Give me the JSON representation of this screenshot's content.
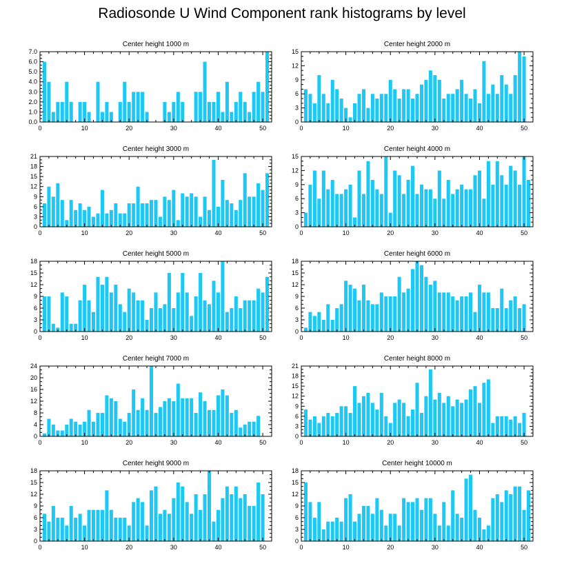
{
  "figure_title": "Radiosonde U Wind Component rank histograms by level",
  "colors": {
    "bar": "#1ec8f5",
    "axis": "#000000"
  },
  "chart_data": [
    {
      "type": "bar",
      "title": "Center height 1000 m",
      "x": [
        1,
        2,
        3,
        4,
        5,
        6,
        7,
        8,
        9,
        10,
        11,
        12,
        13,
        14,
        15,
        16,
        17,
        18,
        19,
        20,
        21,
        22,
        23,
        24,
        25,
        26,
        27,
        28,
        29,
        30,
        31,
        32,
        33,
        34,
        35,
        36,
        37,
        38,
        39,
        40,
        41,
        42,
        43,
        44,
        45,
        46,
        47,
        48,
        49,
        50,
        51
      ],
      "values": [
        6.0,
        4.0,
        1.0,
        2.0,
        2.0,
        4.0,
        2.0,
        0,
        2.0,
        2.0,
        1.0,
        0,
        4.0,
        1.0,
        2.0,
        1.0,
        0,
        2.0,
        4.0,
        2.0,
        3.0,
        3.0,
        3.0,
        1.0,
        0,
        0,
        0,
        2.0,
        1.0,
        2.0,
        3.0,
        2.0,
        0,
        0,
        3.0,
        3.0,
        6.0,
        2.0,
        2.0,
        3.0,
        1.0,
        4.0,
        1.0,
        2.0,
        3.0,
        2.0,
        1.0,
        3.0,
        4.0,
        3.0,
        7.0
      ],
      "xlim": [
        0,
        52
      ],
      "ylim": [
        0,
        7
      ],
      "yticks": [
        "0.0",
        "1.0",
        "2.0",
        "3.0",
        "4.0",
        "5.0",
        "6.0",
        "7.0"
      ],
      "xticks": [
        "0",
        "10",
        "20",
        "30",
        "40",
        "50"
      ],
      "yaxis_side": "left"
    },
    {
      "type": "bar",
      "title": "Center height 2000 m",
      "x": [
        1,
        2,
        3,
        4,
        5,
        6,
        7,
        8,
        9,
        10,
        11,
        12,
        13,
        14,
        15,
        16,
        17,
        18,
        19,
        20,
        21,
        22,
        23,
        24,
        25,
        26,
        27,
        28,
        29,
        30,
        31,
        32,
        33,
        34,
        35,
        36,
        37,
        38,
        39,
        40,
        41,
        42,
        43,
        44,
        45,
        46,
        47,
        48,
        49,
        50,
        51
      ],
      "values": [
        7,
        6,
        4,
        10,
        6,
        4,
        9,
        7,
        5,
        3,
        1,
        4,
        6,
        7,
        3,
        6,
        5,
        6,
        6,
        9,
        7,
        5,
        7,
        7,
        5,
        6,
        8,
        9,
        11,
        10,
        9,
        5,
        6,
        6,
        7,
        9,
        6,
        5,
        7,
        4,
        13,
        6,
        8,
        6,
        10,
        8,
        6,
        10,
        15,
        14,
        0
      ],
      "xlim": [
        0,
        52
      ],
      "ylim": [
        0,
        15
      ],
      "yticks": [
        "0",
        "3",
        "6",
        "9",
        "12",
        "15"
      ],
      "xticks": [
        "0",
        "10",
        "20",
        "30",
        "40",
        "50"
      ],
      "yaxis_side": "left"
    },
    {
      "type": "bar",
      "title": "Center height 3000 m",
      "x": [
        1,
        2,
        3,
        4,
        5,
        6,
        7,
        8,
        9,
        10,
        11,
        12,
        13,
        14,
        15,
        16,
        17,
        18,
        19,
        20,
        21,
        22,
        23,
        24,
        25,
        26,
        27,
        28,
        29,
        30,
        31,
        32,
        33,
        34,
        35,
        36,
        37,
        38,
        39,
        40,
        41,
        42,
        43,
        44,
        45,
        46,
        47,
        48,
        49,
        50,
        51
      ],
      "values": [
        7,
        12,
        9,
        13,
        8,
        2,
        8,
        5,
        7,
        5,
        6,
        3,
        4,
        11,
        4,
        5,
        7,
        4,
        4,
        7,
        7,
        12,
        7,
        7,
        8,
        8,
        3,
        9,
        8,
        11,
        2,
        10,
        9,
        10,
        9,
        3,
        9,
        5,
        20,
        6,
        14,
        8,
        7,
        5,
        8,
        16,
        9,
        9,
        13,
        11,
        16
      ],
      "xlim": [
        0,
        52
      ],
      "ylim": [
        0,
        21
      ],
      "yticks": [
        "0",
        "3",
        "6",
        "9",
        "12",
        "15",
        "18",
        "21"
      ],
      "xticks": [
        "0",
        "10",
        "20",
        "30",
        "40",
        "50"
      ],
      "yaxis_side": "left"
    },
    {
      "type": "bar",
      "title": "Center height 4000 m",
      "x": [
        1,
        2,
        3,
        4,
        5,
        6,
        7,
        8,
        9,
        10,
        11,
        12,
        13,
        14,
        15,
        16,
        17,
        18,
        19,
        20,
        21,
        22,
        23,
        24,
        25,
        26,
        27,
        28,
        29,
        30,
        31,
        32,
        33,
        34,
        35,
        36,
        37,
        38,
        39,
        40,
        41,
        42,
        43,
        44,
        45,
        46,
        47,
        48,
        49,
        50,
        51
      ],
      "values": [
        3,
        9,
        12,
        6,
        12,
        8,
        10,
        7,
        7,
        8,
        9,
        2,
        12,
        7,
        14,
        10,
        8,
        7,
        15,
        3,
        12,
        11,
        7,
        10,
        13,
        7,
        9,
        8,
        8,
        6,
        12,
        6,
        10,
        7,
        8,
        9,
        8,
        8,
        11,
        12,
        6,
        14,
        9,
        14,
        11,
        9,
        13,
        12,
        9,
        15,
        10
      ],
      "xlim": [
        0,
        52
      ],
      "ylim": [
        0,
        15
      ],
      "yticks": [
        "0",
        "3",
        "6",
        "9",
        "12",
        "15"
      ],
      "xticks": [
        "0",
        "10",
        "20",
        "30",
        "40",
        "50"
      ],
      "yaxis_side": "left"
    },
    {
      "type": "bar",
      "title": "Center height 5000 m",
      "x": [
        1,
        2,
        3,
        4,
        5,
        6,
        7,
        8,
        9,
        10,
        11,
        12,
        13,
        14,
        15,
        16,
        17,
        18,
        19,
        20,
        21,
        22,
        23,
        24,
        25,
        26,
        27,
        28,
        29,
        30,
        31,
        32,
        33,
        34,
        35,
        36,
        37,
        38,
        39,
        40,
        41,
        42,
        43,
        44,
        45,
        46,
        47,
        48,
        49,
        50,
        51
      ],
      "values": [
        9,
        9,
        2,
        1,
        10,
        9,
        2,
        2,
        8,
        12,
        8,
        5,
        14,
        12,
        14,
        10,
        12,
        7,
        5,
        11,
        10,
        8,
        8,
        3,
        6,
        10,
        6,
        7,
        15,
        6,
        10,
        15,
        10,
        4,
        9,
        15,
        8,
        7,
        13,
        10,
        18,
        5,
        6,
        9,
        6,
        8,
        8,
        8,
        11,
        10,
        14
      ],
      "xlim": [
        0,
        52
      ],
      "ylim": [
        0,
        18
      ],
      "yticks": [
        "0",
        "3",
        "6",
        "9",
        "12",
        "15",
        "18"
      ],
      "xticks": [
        "0",
        "10",
        "20",
        "30",
        "40",
        "50"
      ],
      "yaxis_side": "left"
    },
    {
      "type": "bar",
      "title": "Center height 6000 m",
      "x": [
        1,
        2,
        3,
        4,
        5,
        6,
        7,
        8,
        9,
        10,
        11,
        12,
        13,
        14,
        15,
        16,
        17,
        18,
        19,
        20,
        21,
        22,
        23,
        24,
        25,
        26,
        27,
        28,
        29,
        30,
        31,
        32,
        33,
        34,
        35,
        36,
        37,
        38,
        39,
        40,
        41,
        42,
        43,
        44,
        45,
        46,
        47,
        48,
        49,
        50,
        51
      ],
      "values": [
        1,
        5,
        4,
        5,
        3,
        7,
        3,
        6,
        7,
        13,
        12,
        11,
        8,
        12,
        8,
        7,
        7,
        10,
        9,
        9,
        9,
        14,
        10,
        11,
        16,
        18,
        17,
        14,
        12,
        13,
        10,
        10,
        10,
        9,
        8,
        9,
        9,
        10,
        5,
        12,
        10,
        10,
        6,
        6,
        11,
        6,
        8,
        9,
        6,
        7,
        0
      ],
      "xlim": [
        0,
        52
      ],
      "ylim": [
        0,
        18
      ],
      "yticks": [
        "0",
        "3",
        "6",
        "9",
        "12",
        "15",
        "18"
      ],
      "xticks": [
        "0",
        "10",
        "20",
        "30",
        "40",
        "50"
      ],
      "yaxis_side": "left"
    },
    {
      "type": "bar",
      "title": "Center height 7000 m",
      "x": [
        1,
        2,
        3,
        4,
        5,
        6,
        7,
        8,
        9,
        10,
        11,
        12,
        13,
        14,
        15,
        16,
        17,
        18,
        19,
        20,
        21,
        22,
        23,
        24,
        25,
        26,
        27,
        28,
        29,
        30,
        31,
        32,
        33,
        34,
        35,
        36,
        37,
        38,
        39,
        40,
        41,
        42,
        43,
        44,
        45,
        46,
        47,
        48,
        49,
        50,
        51
      ],
      "values": [
        1,
        6,
        4,
        2,
        2,
        4,
        6,
        5,
        4,
        5,
        9,
        5,
        8,
        8,
        14,
        13,
        12,
        6,
        5,
        8,
        16,
        9,
        13,
        9,
        24,
        8,
        10,
        12,
        13,
        12,
        18,
        13,
        13,
        13,
        8,
        15,
        12,
        9,
        9,
        14,
        16,
        14,
        8,
        9,
        3,
        4,
        5,
        5,
        7,
        0,
        0
      ],
      "xlim": [
        0,
        52
      ],
      "ylim": [
        0,
        24
      ],
      "yticks": [
        "0",
        "4",
        "8",
        "12",
        "16",
        "20",
        "24"
      ],
      "xticks": [
        "0",
        "10",
        "20",
        "30",
        "40",
        "50"
      ],
      "yaxis_side": "left"
    },
    {
      "type": "bar",
      "title": "Center height 8000 m",
      "x": [
        1,
        2,
        3,
        4,
        5,
        6,
        7,
        8,
        9,
        10,
        11,
        12,
        13,
        14,
        15,
        16,
        17,
        18,
        19,
        20,
        21,
        22,
        23,
        24,
        25,
        26,
        27,
        28,
        29,
        30,
        31,
        32,
        33,
        34,
        35,
        36,
        37,
        38,
        39,
        40,
        41,
        42,
        43,
        44,
        45,
        46,
        47,
        48,
        49,
        50,
        51
      ],
      "values": [
        8,
        5,
        6,
        4,
        6,
        7,
        6,
        7,
        9,
        9,
        7,
        15,
        10,
        12,
        13,
        10,
        8,
        13,
        6,
        4,
        10,
        11,
        10,
        6,
        8,
        16,
        7,
        12,
        20,
        11,
        13,
        10,
        12,
        9,
        11,
        10,
        11,
        14,
        15,
        10,
        16,
        17,
        4,
        6,
        6,
        6,
        5,
        6,
        4,
        7,
        0
      ],
      "xlim": [
        0,
        52
      ],
      "ylim": [
        0,
        21
      ],
      "yticks": [
        "0",
        "3",
        "6",
        "9",
        "12",
        "15",
        "18",
        "21"
      ],
      "xticks": [
        "0",
        "10",
        "20",
        "30",
        "40",
        "50"
      ],
      "yaxis_side": "left"
    },
    {
      "type": "bar",
      "title": "Center height 9000 m",
      "x": [
        1,
        2,
        3,
        4,
        5,
        6,
        7,
        8,
        9,
        10,
        11,
        12,
        13,
        14,
        15,
        16,
        17,
        18,
        19,
        20,
        21,
        22,
        23,
        24,
        25,
        26,
        27,
        28,
        29,
        30,
        31,
        32,
        33,
        34,
        35,
        36,
        37,
        38,
        39,
        40,
        41,
        42,
        43,
        44,
        45,
        46,
        47,
        48,
        49,
        50,
        51
      ],
      "values": [
        7,
        5,
        9,
        6,
        6,
        4,
        9,
        6,
        7,
        4,
        8,
        8,
        8,
        8,
        13,
        8,
        6,
        6,
        6,
        4,
        10,
        11,
        10,
        4,
        13,
        14,
        7,
        8,
        7,
        11,
        15,
        14,
        10,
        7,
        12,
        8,
        12,
        18,
        5,
        8,
        11,
        14,
        12,
        14,
        11,
        12,
        9,
        9,
        15,
        12,
        0
      ],
      "xlim": [
        0,
        52
      ],
      "ylim": [
        0,
        18
      ],
      "yticks": [
        "0",
        "3",
        "6",
        "9",
        "12",
        "15",
        "18"
      ],
      "xticks": [
        "0",
        "10",
        "20",
        "30",
        "40",
        "50"
      ],
      "yaxis_side": "left"
    },
    {
      "type": "bar",
      "title": "Center height 10000 m",
      "x": [
        1,
        2,
        3,
        4,
        5,
        6,
        7,
        8,
        9,
        10,
        11,
        12,
        13,
        14,
        15,
        16,
        17,
        18,
        19,
        20,
        21,
        22,
        23,
        24,
        25,
        26,
        27,
        28,
        29,
        30,
        31,
        32,
        33,
        34,
        35,
        36,
        37,
        38,
        39,
        40,
        41,
        42,
        43,
        44,
        45,
        46,
        47,
        48,
        49,
        50,
        51
      ],
      "values": [
        15,
        10,
        6,
        10,
        3,
        5,
        5,
        6,
        5,
        11,
        12,
        5,
        7,
        9,
        9,
        7,
        11,
        8,
        4,
        7,
        7,
        4,
        11,
        10,
        10,
        11,
        8,
        11,
        11,
        7,
        4,
        10,
        4,
        13,
        7,
        6,
        16,
        17,
        8,
        6,
        3,
        4,
        11,
        12,
        10,
        13,
        12,
        14,
        14,
        8,
        13
      ],
      "xlim": [
        0,
        52
      ],
      "ylim": [
        0,
        18
      ],
      "yticks": [
        "0",
        "3",
        "6",
        "9",
        "12",
        "15",
        "18"
      ],
      "xticks": [
        "0",
        "10",
        "20",
        "30",
        "40",
        "50"
      ],
      "yaxis_side": "left"
    }
  ]
}
